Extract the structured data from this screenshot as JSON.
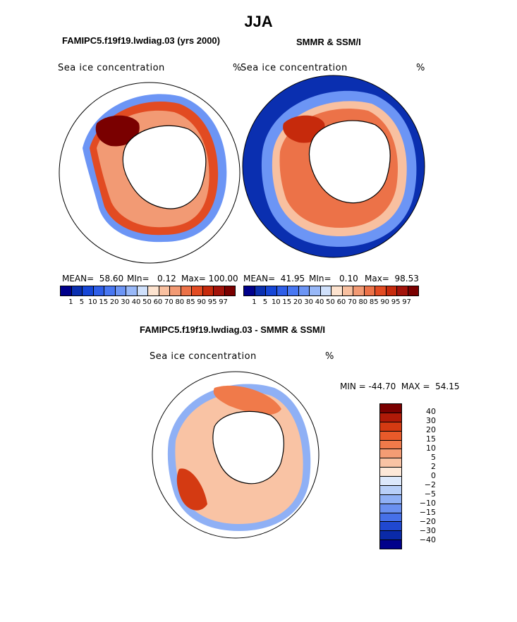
{
  "page": {
    "title": "JJA",
    "left_title": "FAMIPC5.f19f19.lwdiag.03 (yrs 2000)",
    "right_title": "SMMR & SSM/I",
    "diff_title": "FAMIPC5.f19f19.lwdiag.03 - SMMR & SSM/I"
  },
  "panels": {
    "left": {
      "variable": "Sea ice concentration",
      "unit": "%",
      "mean": "MEAN=  58.60",
      "min": "MIn=   0.12",
      "max": "Max= 100.00"
    },
    "right": {
      "variable": "Sea ice concentration",
      "unit": "%",
      "mean": "MEAN=  41.95",
      "min": "MIn=   0.10",
      "max": "Max=  98.53"
    },
    "diff": {
      "variable": "Sea ice concentration",
      "unit": "%",
      "minmax": "MIN = -44.70  MAX =  54.15"
    }
  },
  "colorbar": {
    "labels": [
      "1",
      "5",
      "10",
      "15",
      "20",
      "30",
      "40",
      "50",
      "60",
      "70",
      "80",
      "85",
      "90",
      "95",
      "97"
    ],
    "colors": [
      "#00008b",
      "#0a2fb0",
      "#1646d6",
      "#2e5ee8",
      "#4877f2",
      "#6c95f5",
      "#98b8f8",
      "#cfe0fb",
      "#fde3cf",
      "#f8c0a0",
      "#f29a74",
      "#ec7248",
      "#e24b22",
      "#c62a0c",
      "#a3130a",
      "#7a0000"
    ]
  },
  "diff_colorbar": {
    "labels": [
      "40",
      "30",
      "20",
      "15",
      "10",
      "5",
      "2",
      "0",
      "−2",
      "−5",
      "−10",
      "−15",
      "−20",
      "−30",
      "−40"
    ],
    "colors": [
      "#7a0000",
      "#b01a08",
      "#d43a12",
      "#e85a2a",
      "#f07a4a",
      "#f49c74",
      "#f9c3a4",
      "#fde8d8",
      "#dce8fb",
      "#b8cff8",
      "#8fb0f5",
      "#6a90f0",
      "#4670e8",
      "#2048d0",
      "#0a2aa8",
      "#00008b"
    ]
  }
}
